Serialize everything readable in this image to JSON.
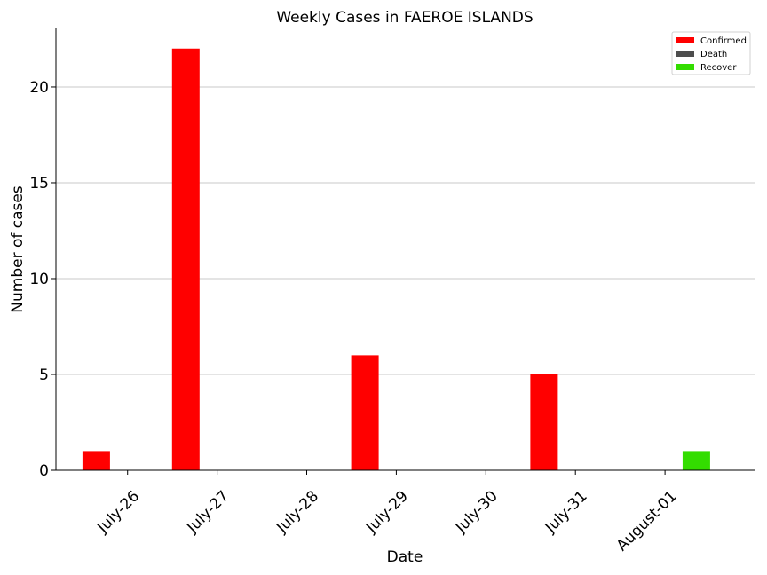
{
  "chart_data": {
    "type": "bar",
    "title": "Weekly Cases in FAEROE ISLANDS",
    "xlabel": "Date",
    "ylabel": "Number of cases",
    "categories": [
      "July-26",
      "July-27",
      "July-28",
      "July-29",
      "July-30",
      "July-31",
      "August-01"
    ],
    "series": [
      {
        "name": "Confirmed",
        "color": "#ff0000",
        "values": [
          1,
          22,
          0,
          6,
          0,
          5,
          0
        ]
      },
      {
        "name": "Death",
        "color": "#4d4d4d",
        "values": [
          0,
          0,
          0,
          0,
          0,
          0,
          0
        ]
      },
      {
        "name": "Recover",
        "color": "#33dd00",
        "values": [
          0,
          0,
          0,
          0,
          0,
          0,
          1
        ]
      }
    ],
    "ylim": [
      0,
      23.1
    ],
    "yticks": [
      0,
      5,
      10,
      15,
      20
    ],
    "grid": "horizontal",
    "legend_position": "top-right"
  }
}
